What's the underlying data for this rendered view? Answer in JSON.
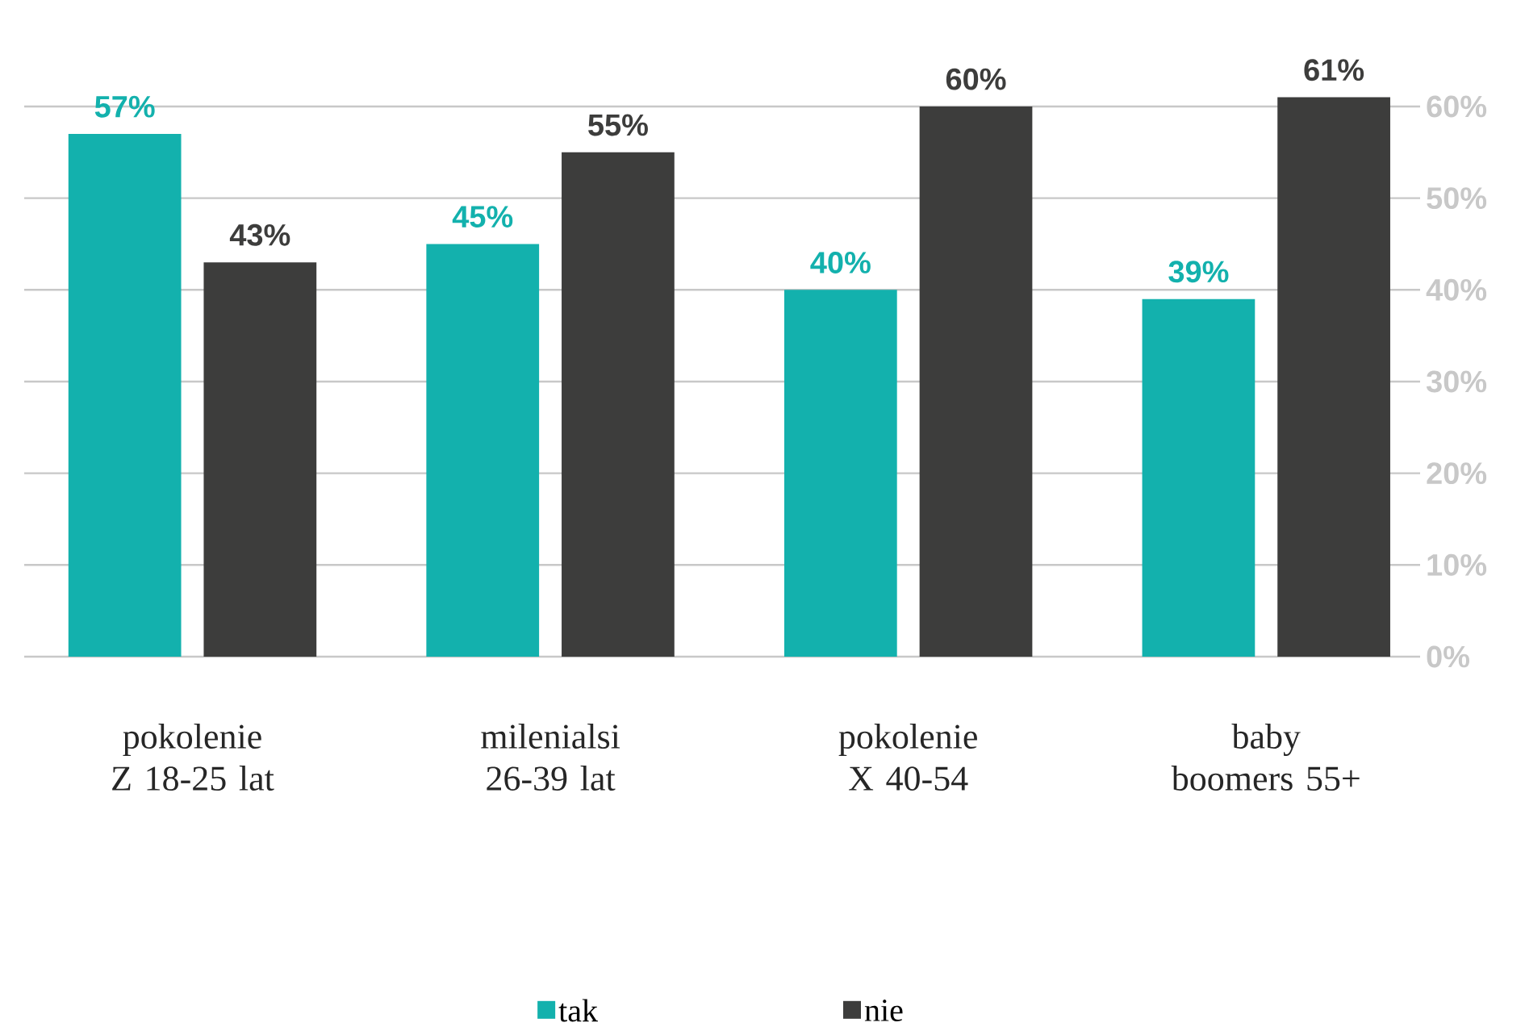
{
  "chart_data": {
    "type": "bar",
    "categories": [
      "pokolenie Z 18-25 lat",
      "milenialsi 26-39 lat",
      "pokolenie X 40-54",
      "baby boomers 55+"
    ],
    "series": [
      {
        "name": "tak",
        "color": "#13b1ad",
        "values": [
          57,
          45,
          40,
          39
        ],
        "value_labels": [
          "57%",
          "45%",
          "40%",
          "39%"
        ]
      },
      {
        "name": "nie",
        "color": "#3d3d3c",
        "values": [
          43,
          55,
          60,
          61
        ],
        "value_labels": [
          "43%",
          "55%",
          "60%",
          "61%"
        ]
      }
    ],
    "ylim": [
      0,
      61
    ],
    "yticks": [
      {
        "value": 0,
        "label": "0%"
      },
      {
        "value": 10,
        "label": "10%"
      },
      {
        "value": 20,
        "label": "20%"
      },
      {
        "value": 30,
        "label": "30%"
      },
      {
        "value": 40,
        "label": "40%"
      },
      {
        "value": 50,
        "label": "50%"
      },
      {
        "value": 60,
        "label": "60%"
      }
    ],
    "grid": "y",
    "legend": "bottom"
  }
}
